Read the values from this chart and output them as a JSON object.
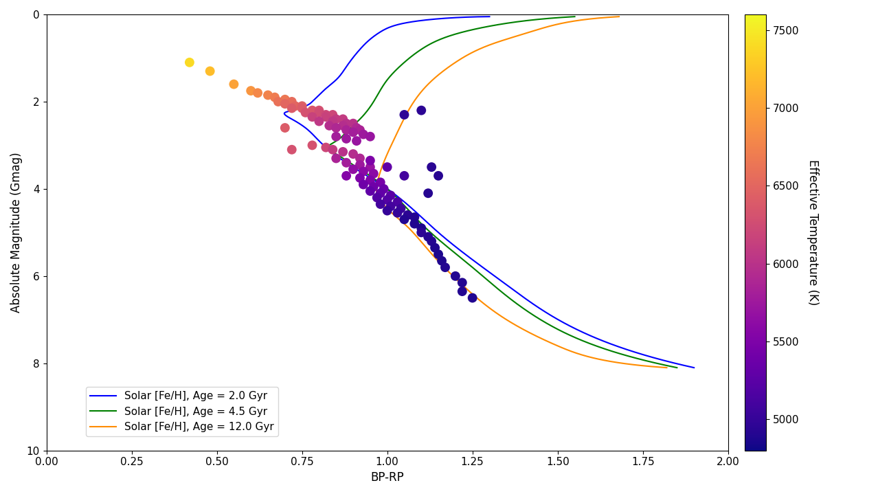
{
  "xlabel": "BP-RP",
  "ylabel": "Absolute Magnitude (Gmag)",
  "xlim": [
    0.0,
    2.0
  ],
  "ylim": [
    10,
    0
  ],
  "cbar_label": "Effective Temperature (K)",
  "cbar_vmin": 4800,
  "cbar_vmax": 7600,
  "cbar_ticks": [
    5000,
    5500,
    6000,
    6500,
    7000,
    7500
  ],
  "scatter_size": 100,
  "scatter_points": [
    [
      0.42,
      1.1,
      7400
    ],
    [
      0.48,
      1.3,
      7200
    ],
    [
      0.55,
      1.6,
      7000
    ],
    [
      0.6,
      1.75,
      6900
    ],
    [
      0.62,
      1.8,
      6800
    ],
    [
      0.65,
      1.85,
      6750
    ],
    [
      0.67,
      1.9,
      6700
    ],
    [
      0.7,
      1.95,
      6650
    ],
    [
      0.68,
      2.0,
      6600
    ],
    [
      0.72,
      2.0,
      6550
    ],
    [
      0.7,
      2.05,
      6500
    ],
    [
      0.73,
      2.1,
      6500
    ],
    [
      0.75,
      2.1,
      6450
    ],
    [
      0.72,
      2.15,
      6400
    ],
    [
      0.75,
      2.15,
      6400
    ],
    [
      0.78,
      2.2,
      6350
    ],
    [
      0.8,
      2.2,
      6300
    ],
    [
      0.76,
      2.25,
      6300
    ],
    [
      0.8,
      2.25,
      6250
    ],
    [
      0.82,
      2.3,
      6200
    ],
    [
      0.84,
      2.3,
      6200
    ],
    [
      0.78,
      2.35,
      6150
    ],
    [
      0.82,
      2.35,
      6150
    ],
    [
      0.85,
      2.4,
      6100
    ],
    [
      0.87,
      2.4,
      6100
    ],
    [
      0.8,
      2.45,
      6050
    ],
    [
      0.84,
      2.45,
      6050
    ],
    [
      0.88,
      2.5,
      6000
    ],
    [
      0.9,
      2.5,
      6000
    ],
    [
      0.83,
      2.55,
      5950
    ],
    [
      0.87,
      2.55,
      5950
    ],
    [
      0.91,
      2.6,
      5900
    ],
    [
      0.85,
      2.6,
      5900
    ],
    [
      0.88,
      2.65,
      5850
    ],
    [
      0.92,
      2.65,
      5850
    ],
    [
      0.9,
      2.7,
      5800
    ],
    [
      0.85,
      2.8,
      5800
    ],
    [
      0.88,
      2.85,
      5750
    ],
    [
      0.93,
      2.75,
      5750
    ],
    [
      0.91,
      2.9,
      5700
    ],
    [
      0.95,
      2.8,
      5700
    ],
    [
      0.78,
      3.0,
      6300
    ],
    [
      0.82,
      3.05,
      6200
    ],
    [
      0.84,
      3.1,
      6100
    ],
    [
      0.87,
      3.15,
      6000
    ],
    [
      0.9,
      3.2,
      5950
    ],
    [
      0.92,
      3.3,
      5900
    ],
    [
      0.85,
      3.3,
      5850
    ],
    [
      0.88,
      3.4,
      5800
    ],
    [
      0.92,
      3.45,
      5750
    ],
    [
      0.95,
      3.5,
      5700
    ],
    [
      0.9,
      3.55,
      5650
    ],
    [
      0.93,
      3.6,
      5600
    ],
    [
      0.96,
      3.65,
      5600
    ],
    [
      0.88,
      3.7,
      5550
    ],
    [
      0.92,
      3.75,
      5500
    ],
    [
      0.95,
      3.8,
      5500
    ],
    [
      0.98,
      3.85,
      5450
    ],
    [
      0.93,
      3.9,
      5400
    ],
    [
      0.96,
      3.95,
      5400
    ],
    [
      0.99,
      4.0,
      5350
    ],
    [
      0.95,
      4.05,
      5300
    ],
    [
      0.98,
      4.1,
      5300
    ],
    [
      1.01,
      4.15,
      5250
    ],
    [
      0.97,
      4.2,
      5200
    ],
    [
      1.0,
      4.25,
      5200
    ],
    [
      1.03,
      4.3,
      5150
    ],
    [
      0.98,
      4.35,
      5100
    ],
    [
      1.01,
      4.4,
      5100
    ],
    [
      1.04,
      4.45,
      5050
    ],
    [
      1.0,
      4.5,
      5000
    ],
    [
      1.03,
      4.55,
      5000
    ],
    [
      1.06,
      4.6,
      4950
    ],
    [
      1.08,
      4.65,
      4900
    ],
    [
      1.05,
      4.7,
      4900
    ],
    [
      1.08,
      4.8,
      4880
    ],
    [
      1.1,
      4.9,
      4870
    ],
    [
      1.1,
      5.0,
      4950
    ],
    [
      1.12,
      5.1,
      4920
    ],
    [
      1.13,
      5.2,
      4900
    ],
    [
      1.14,
      5.35,
      4880
    ],
    [
      1.15,
      5.5,
      4870
    ],
    [
      1.16,
      5.65,
      4880
    ],
    [
      1.17,
      5.8,
      4900
    ],
    [
      1.2,
      6.0,
      4900
    ],
    [
      1.22,
      6.15,
      4900
    ],
    [
      1.22,
      6.35,
      4900
    ],
    [
      1.25,
      6.5,
      4890
    ],
    [
      1.1,
      2.2,
      4950
    ],
    [
      1.05,
      2.3,
      4960
    ],
    [
      1.13,
      3.5,
      4940
    ],
    [
      1.15,
      3.7,
      4930
    ],
    [
      1.12,
      4.1,
      4920
    ],
    [
      0.95,
      3.35,
      5500
    ],
    [
      1.0,
      3.5,
      5300
    ],
    [
      1.05,
      3.7,
      5100
    ],
    [
      0.7,
      2.6,
      6400
    ],
    [
      0.72,
      3.1,
      6300
    ]
  ],
  "iso_blue": {
    "label": "Solar [Fe/H], Age = 2.0 Gyr",
    "color": "blue",
    "x": [
      1.3,
      1.15,
      1.05,
      0.98,
      0.92,
      0.88,
      0.85,
      0.82,
      0.8,
      0.78,
      0.76,
      0.74,
      0.72,
      0.7,
      0.7,
      0.72,
      0.76,
      0.8,
      0.88,
      1.0,
      1.15,
      1.35,
      1.55,
      1.75,
      1.9
    ],
    "y": [
      0.05,
      0.1,
      0.2,
      0.4,
      0.8,
      1.2,
      1.5,
      1.7,
      1.85,
      2.0,
      2.1,
      2.15,
      2.2,
      2.25,
      2.3,
      2.4,
      2.6,
      2.9,
      3.4,
      4.0,
      5.0,
      6.2,
      7.2,
      7.8,
      8.1
    ]
  },
  "iso_green": {
    "label": "Solar [Fe/H], Age = 4.5 Gyr",
    "color": "green",
    "x": [
      1.55,
      1.4,
      1.28,
      1.18,
      1.1,
      1.05,
      1.0,
      0.96,
      0.92,
      0.88,
      0.86,
      0.84,
      0.83,
      0.83,
      0.85,
      0.88,
      0.93,
      1.0,
      1.1,
      1.25,
      1.45,
      1.65,
      1.85
    ],
    "y": [
      0.05,
      0.15,
      0.3,
      0.5,
      0.8,
      1.1,
      1.5,
      2.0,
      2.4,
      2.7,
      2.85,
      2.95,
      3.0,
      3.1,
      3.2,
      3.35,
      3.6,
      4.0,
      4.8,
      5.8,
      7.0,
      7.7,
      8.1
    ]
  },
  "iso_orange": {
    "label": "Solar [Fe/H], Age = 12.0 Gyr",
    "color": "darkorange",
    "x": [
      1.68,
      1.55,
      1.42,
      1.3,
      1.2,
      1.12,
      1.07,
      1.03,
      1.0,
      0.98,
      0.97,
      0.97,
      0.98,
      1.0,
      1.05,
      1.12,
      1.22,
      1.35,
      1.5,
      1.65,
      1.82
    ],
    "y": [
      0.05,
      0.15,
      0.4,
      0.7,
      1.1,
      1.6,
      2.1,
      2.7,
      3.2,
      3.6,
      3.9,
      4.1,
      4.25,
      4.45,
      4.8,
      5.4,
      6.2,
      7.0,
      7.6,
      7.95,
      8.1
    ]
  }
}
